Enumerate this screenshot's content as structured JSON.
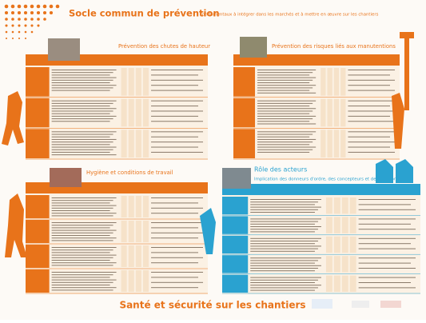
{
  "header": {
    "title": "Socle commun de prévention",
    "subtitle": "Fondamentaux à intégrer dans les marchés et à mettre en œuvre sur les chantiers"
  },
  "sections": [
    {
      "title": "Prévention des chutes de hauteur"
    },
    {
      "title": "Prévention des risques liés aux manutentions"
    },
    {
      "title": "Hygiène et conditions de travail"
    },
    {
      "title": "Rôle des acteurs",
      "subtitle": "Implication des donneurs d'ordre, des concepteurs et des entreprises"
    }
  ],
  "footer": {
    "title": "Santé et sécurité sur les chantiers"
  }
}
